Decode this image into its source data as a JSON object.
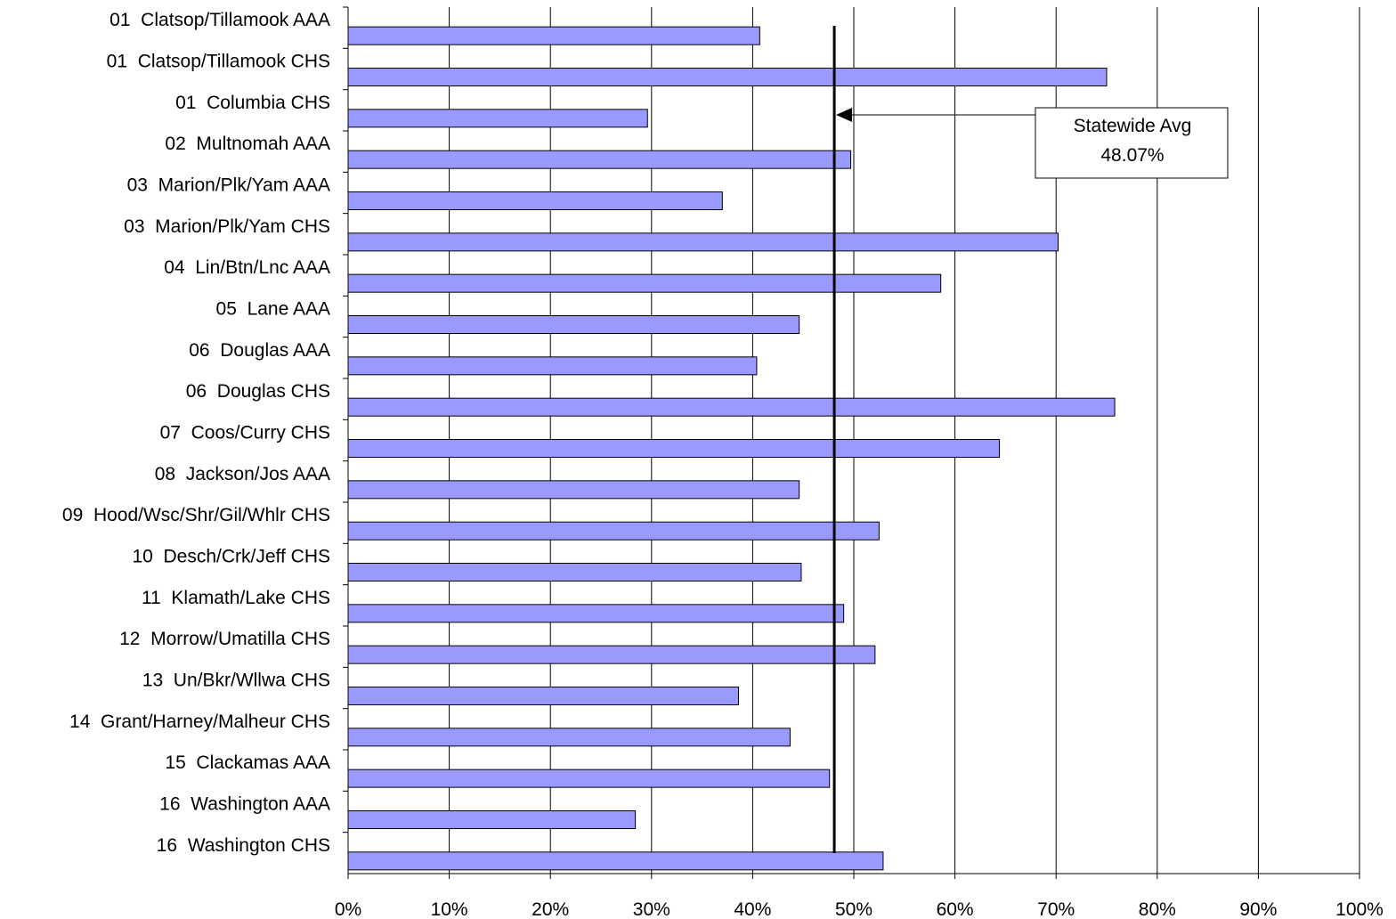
{
  "chart_data": {
    "type": "bar",
    "orientation": "horizontal",
    "categories": [
      "01  Clatsop/Tillamook AAA",
      "01  Clatsop/Tillamook CHS",
      "01  Columbia CHS",
      "02  Multnomah AAA",
      "03  Marion/Plk/Yam AAA",
      "03  Marion/Plk/Yam CHS",
      "04  Lin/Btn/Lnc AAA",
      "05  Lane AAA",
      "06  Douglas AAA",
      "06  Douglas CHS",
      "07  Coos/Curry CHS",
      "08  Jackson/Jos AAA",
      "09  Hood/Wsc/Shr/Gil/Whlr CHS",
      "10  Desch/Crk/Jeff CHS",
      "11  Klamath/Lake CHS",
      "12  Morrow/Umatilla CHS",
      "13  Un/Bkr/Wllwa CHS",
      "14  Grant/Harney/Malheur CHS",
      "15  Clackamas AAA",
      "16  Washington AAA",
      "16  Washington CHS"
    ],
    "values": [
      0.407,
      0.75,
      0.296,
      0.497,
      0.37,
      0.702,
      0.586,
      0.446,
      0.404,
      0.758,
      0.644,
      0.446,
      0.525,
      0.448,
      0.49,
      0.521,
      0.386,
      0.437,
      0.476,
      0.284,
      0.529
    ],
    "xlim": [
      0,
      1
    ],
    "xticks": [
      "0%",
      "10%",
      "20%",
      "30%",
      "40%",
      "50%",
      "60%",
      "70%",
      "80%",
      "90%",
      "100%"
    ],
    "xlabel": "",
    "ylabel": "",
    "title": "",
    "grid": "vertical",
    "bar_color": "#9999ff",
    "reference_line": {
      "value": 0.4807
    },
    "annotation": {
      "line1": "Statewide Avg",
      "line2": "48.07%"
    }
  }
}
